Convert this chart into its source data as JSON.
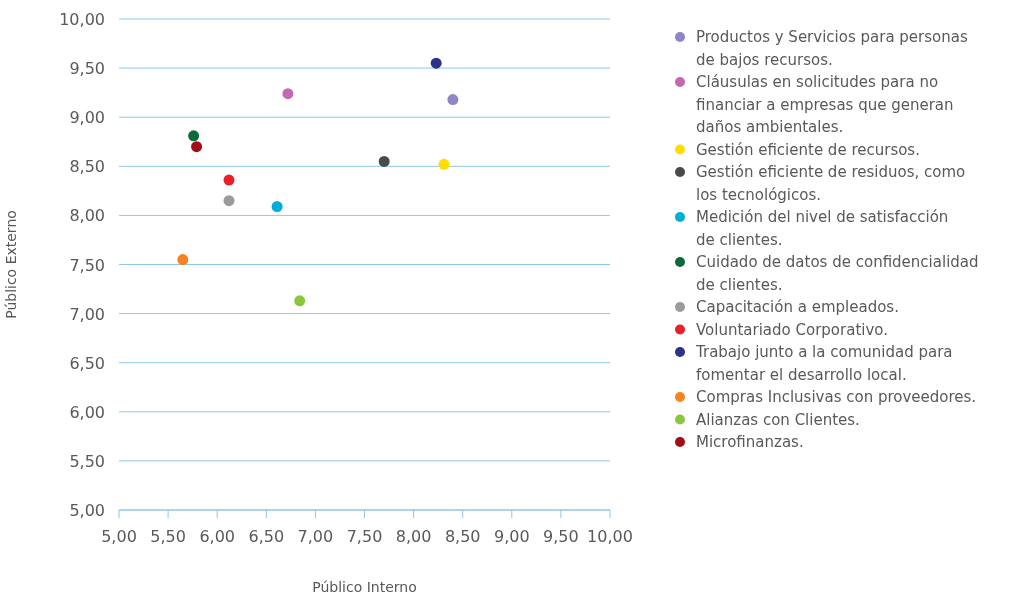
{
  "chart_data": {
    "type": "scatter",
    "xlabel": "Público Interno",
    "ylabel": "Público Externo",
    "xlim": [
      5,
      10
    ],
    "ylim": [
      5,
      10
    ],
    "xticks": [
      {
        "value": 5,
        "label": "5,00"
      },
      {
        "value": 5.5,
        "label": "5,50"
      },
      {
        "value": 6,
        "label": "6,00"
      },
      {
        "value": 6.5,
        "label": "6,50"
      },
      {
        "value": 7,
        "label": "7,00"
      },
      {
        "value": 7.5,
        "label": "7,50"
      },
      {
        "value": 8,
        "label": "8,00"
      },
      {
        "value": 8.5,
        "label": "8,50"
      },
      {
        "value": 9,
        "label": "9,00"
      },
      {
        "value": 9.5,
        "label": "9,50"
      },
      {
        "value": 10,
        "label": "10,00"
      }
    ],
    "yticks": [
      {
        "value": 5,
        "label": "5,00"
      },
      {
        "value": 5.5,
        "label": "5,50"
      },
      {
        "value": 6,
        "label": "6,00"
      },
      {
        "value": 6.5,
        "label": "6,50"
      },
      {
        "value": 7,
        "label": "7,00"
      },
      {
        "value": 7.5,
        "label": "7,50"
      },
      {
        "value": 8,
        "label": "8,00"
      },
      {
        "value": 8.5,
        "label": "8,50"
      },
      {
        "value": 9,
        "label": "9,00"
      },
      {
        "value": 9.5,
        "label": "9,50"
      },
      {
        "value": 10,
        "label": "10,00"
      }
    ],
    "grid": "y",
    "legend": "right",
    "marker": "circle",
    "series": [
      {
        "name": "Productos y Servicios para personas de bajos recursos.",
        "color": "#8e86c6",
        "x": [
          8.4
        ],
        "values": [
          9.18
        ]
      },
      {
        "name": "Cláusulas en solicitudes para no financiar a empresas que generan daños ambientales.",
        "color": "#c468b4",
        "x": [
          6.72
        ],
        "values": [
          9.24
        ]
      },
      {
        "name": "Gestión eficiente de recursos.",
        "color": "#ffdd00",
        "x": [
          8.31
        ],
        "values": [
          8.52
        ]
      },
      {
        "name": "Gestión eficiente de residuos, como los tecnológicos.",
        "color": "#4a4a4a",
        "x": [
          7.7
        ],
        "values": [
          8.55
        ]
      },
      {
        "name": "Medición del nivel de satisfacción de clientes.",
        "color": "#00add8",
        "x": [
          6.61
        ],
        "values": [
          8.09
        ]
      },
      {
        "name": "Cuidado de datos de confidencialidad de clientes.",
        "color": "#0a6b36",
        "x": [
          5.76
        ],
        "values": [
          8.81
        ]
      },
      {
        "name": "Capacitación a empleados.",
        "color": "#9a9a9a",
        "x": [
          6.12
        ],
        "values": [
          8.15
        ]
      },
      {
        "name": "Voluntariado Corporativo.",
        "color": "#e8202a",
        "x": [
          6.12
        ],
        "values": [
          8.36
        ]
      },
      {
        "name": "Trabajo junto a la comunidad para fomentar el desarrollo local.",
        "color": "#2c3289",
        "x": [
          8.23
        ],
        "values": [
          9.55
        ]
      },
      {
        "name": "Compras Inclusivas con proveedores.",
        "color": "#f7821e",
        "x": [
          5.65
        ],
        "values": [
          7.55
        ]
      },
      {
        "name": "Alianzas con Clientes.",
        "color": "#8cc63f",
        "x": [
          6.84
        ],
        "values": [
          7.13
        ]
      },
      {
        "name": "Microfinanzas.",
        "color": "#a30d1a",
        "x": [
          5.79
        ],
        "values": [
          8.7
        ]
      }
    ]
  }
}
